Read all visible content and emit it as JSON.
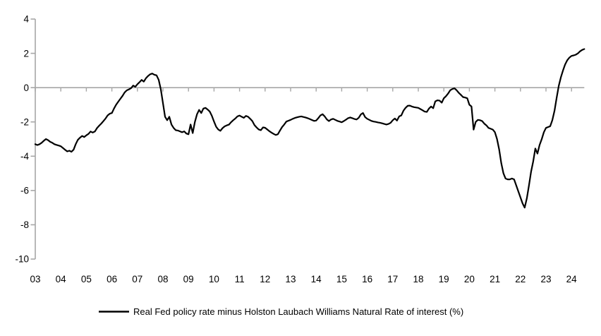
{
  "chart_data": {
    "type": "line",
    "title": "",
    "legend": [
      {
        "label": "Real Fed policy rate minus Holston Laubach Williams Natural Rate of interest (%)",
        "color": "#000000"
      }
    ],
    "x_labels": [
      "03",
      "04",
      "05",
      "06",
      "07",
      "08",
      "09",
      "10",
      "11",
      "12",
      "13",
      "14",
      "15",
      "16",
      "17",
      "18",
      "19",
      "20",
      "21",
      "22",
      "23",
      "24"
    ],
    "x_points_per_label": 12,
    "y_ticks": [
      4,
      2,
      0,
      -2,
      -4,
      -6,
      -8,
      -10
    ],
    "ylim": [
      -10,
      4
    ],
    "grid": "zero-line-only",
    "legend_position": "bottom-center",
    "axis_color": "#a6a6a6",
    "line_color": "#000000",
    "series": [
      {
        "name": "Real Fed policy rate minus Holston Laubach Williams Natural Rate of interest (%)",
        "start_label": "03",
        "frequency": "monthly",
        "values": [
          -3.3,
          -3.35,
          -3.3,
          -3.22,
          -3.1,
          -3.0,
          -3.06,
          -3.16,
          -3.22,
          -3.3,
          -3.34,
          -3.38,
          -3.42,
          -3.52,
          -3.62,
          -3.72,
          -3.68,
          -3.74,
          -3.62,
          -3.3,
          -3.05,
          -2.92,
          -2.82,
          -2.88,
          -2.78,
          -2.7,
          -2.56,
          -2.62,
          -2.56,
          -2.36,
          -2.22,
          -2.1,
          -1.96,
          -1.8,
          -1.62,
          -1.52,
          -1.48,
          -1.22,
          -1.0,
          -0.82,
          -0.65,
          -0.48,
          -0.28,
          -0.16,
          -0.1,
          -0.03,
          0.12,
          0.05,
          0.2,
          0.32,
          0.45,
          0.35,
          0.55,
          0.68,
          0.78,
          0.82,
          0.75,
          0.72,
          0.45,
          -0.1,
          -0.9,
          -1.7,
          -1.9,
          -1.7,
          -2.15,
          -2.35,
          -2.48,
          -2.5,
          -2.55,
          -2.6,
          -2.55,
          -2.68,
          -2.72,
          -2.15,
          -2.65,
          -2.0,
          -1.55,
          -1.3,
          -1.48,
          -1.22,
          -1.18,
          -1.28,
          -1.4,
          -1.65,
          -1.98,
          -2.28,
          -2.44,
          -2.52,
          -2.36,
          -2.26,
          -2.2,
          -2.16,
          -2.02,
          -1.9,
          -1.8,
          -1.68,
          -1.63,
          -1.7,
          -1.76,
          -1.65,
          -1.7,
          -1.82,
          -1.95,
          -2.18,
          -2.32,
          -2.44,
          -2.48,
          -2.32,
          -2.34,
          -2.44,
          -2.54,
          -2.62,
          -2.7,
          -2.76,
          -2.72,
          -2.5,
          -2.3,
          -2.15,
          -1.98,
          -1.93,
          -1.88,
          -1.82,
          -1.77,
          -1.73,
          -1.7,
          -1.68,
          -1.71,
          -1.74,
          -1.78,
          -1.83,
          -1.89,
          -1.94,
          -1.92,
          -1.78,
          -1.62,
          -1.55,
          -1.68,
          -1.85,
          -1.95,
          -1.86,
          -1.82,
          -1.88,
          -1.94,
          -1.98,
          -2.02,
          -1.95,
          -1.87,
          -1.78,
          -1.74,
          -1.78,
          -1.83,
          -1.86,
          -1.76,
          -1.56,
          -1.48,
          -1.72,
          -1.82,
          -1.88,
          -1.94,
          -1.98,
          -2.0,
          -2.03,
          -2.05,
          -2.08,
          -2.12,
          -2.15,
          -2.12,
          -2.05,
          -1.9,
          -1.8,
          -1.92,
          -1.68,
          -1.62,
          -1.35,
          -1.18,
          -1.06,
          -1.05,
          -1.1,
          -1.14,
          -1.16,
          -1.18,
          -1.25,
          -1.32,
          -1.4,
          -1.42,
          -1.22,
          -1.1,
          -1.2,
          -0.8,
          -0.74,
          -0.76,
          -0.88,
          -0.62,
          -0.5,
          -0.35,
          -0.15,
          -0.08,
          -0.04,
          -0.15,
          -0.3,
          -0.42,
          -0.55,
          -0.58,
          -0.62,
          -1.0,
          -1.1,
          -2.45,
          -2.0,
          -1.88,
          -1.9,
          -1.95,
          -2.1,
          -2.2,
          -2.35,
          -2.4,
          -2.45,
          -2.6,
          -3.0,
          -3.6,
          -4.4,
          -5.0,
          -5.3,
          -5.35,
          -5.35,
          -5.3,
          -5.35,
          -5.7,
          -6.05,
          -6.4,
          -6.75,
          -7.0,
          -6.45,
          -5.7,
          -4.9,
          -4.3,
          -3.55,
          -3.85,
          -3.35,
          -3.0,
          -2.6,
          -2.35,
          -2.3,
          -2.25,
          -1.9,
          -1.35,
          -0.6,
          0.1,
          0.6,
          1.0,
          1.35,
          1.6,
          1.75,
          1.85,
          1.88,
          1.92,
          2.0,
          2.12,
          2.2,
          2.25
        ]
      }
    ]
  }
}
